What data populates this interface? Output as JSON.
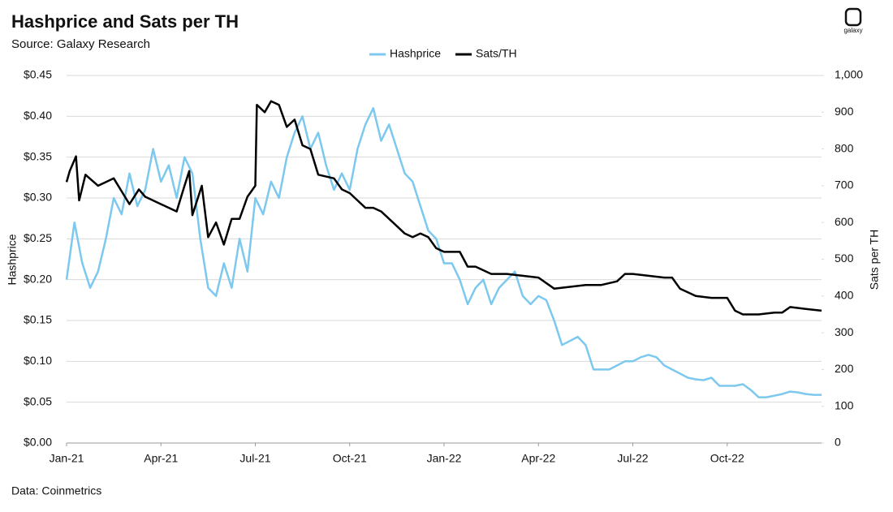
{
  "chart_data": {
    "type": "line",
    "title": "Hashprice and Sats per TH",
    "subtitle": "Source: Galaxy Research",
    "footer": "Data: Coinmetrics",
    "logo": "galaxy",
    "y_label": "Hashprice",
    "y2_label": "Sats per TH",
    "xlim": [
      0,
      24
    ],
    "xticks": [
      {
        "value": 0,
        "label": "Jan-21"
      },
      {
        "value": 3,
        "label": "Apr-21"
      },
      {
        "value": 6,
        "label": "Jul-21"
      },
      {
        "value": 9,
        "label": "Oct-21"
      },
      {
        "value": 12,
        "label": "Jan-22"
      },
      {
        "value": 15,
        "label": "Apr-22"
      },
      {
        "value": 18,
        "label": "Jul-22"
      },
      {
        "value": 21,
        "label": "Oct-22"
      }
    ],
    "ylim": [
      0,
      0.45
    ],
    "yticks": [
      {
        "value": 0,
        "label": "$0.00"
      },
      {
        "value": 0.05,
        "label": "$0.05"
      },
      {
        "value": 0.1,
        "label": "$0.10"
      },
      {
        "value": 0.15,
        "label": "$0.15"
      },
      {
        "value": 0.2,
        "label": "$0.20"
      },
      {
        "value": 0.25,
        "label": "$0.25"
      },
      {
        "value": 0.3,
        "label": "$0.30"
      },
      {
        "value": 0.35,
        "label": "$0.35"
      },
      {
        "value": 0.4,
        "label": "$0.40"
      },
      {
        "value": 0.45,
        "label": "$0.45"
      }
    ],
    "y2lim": [
      0,
      1000
    ],
    "y2ticks": [
      0,
      100,
      200,
      300,
      400,
      500,
      600,
      700,
      800,
      900,
      {
        "value": 1000,
        "label": "1,000"
      }
    ],
    "grid": true,
    "legend": "top",
    "series": [
      {
        "name": "Hashprice",
        "color": "#7cc8ee",
        "axis": "y",
        "x": [
          0,
          0.25,
          0.5,
          0.75,
          1,
          1.25,
          1.5,
          1.75,
          2,
          2.25,
          2.5,
          2.75,
          3,
          3.25,
          3.5,
          3.75,
          4,
          4.25,
          4.5,
          4.75,
          5,
          5.25,
          5.5,
          5.75,
          6,
          6.25,
          6.5,
          6.75,
          7,
          7.25,
          7.5,
          7.75,
          8,
          8.25,
          8.5,
          8.75,
          9,
          9.25,
          9.5,
          9.75,
          10,
          10.25,
          10.5,
          10.75,
          11,
          11.25,
          11.5,
          11.75,
          12,
          12.25,
          12.5,
          12.75,
          13,
          13.25,
          13.5,
          13.75,
          14,
          14.25,
          14.5,
          14.75,
          15,
          15.25,
          15.5,
          15.75,
          16,
          16.25,
          16.5,
          16.75,
          17,
          17.25,
          17.5,
          17.75,
          18,
          18.25,
          18.5,
          18.75,
          19,
          19.25,
          19.5,
          19.75,
          20,
          20.25,
          20.5,
          20.75,
          21,
          21.25,
          21.5,
          21.75,
          22,
          22.25,
          22.5,
          22.75,
          23,
          23.25,
          23.5,
          23.75,
          24
        ],
        "values": [
          0.2,
          0.27,
          0.22,
          0.19,
          0.21,
          0.25,
          0.3,
          0.28,
          0.33,
          0.29,
          0.31,
          0.36,
          0.32,
          0.34,
          0.3,
          0.35,
          0.33,
          0.25,
          0.19,
          0.18,
          0.22,
          0.19,
          0.25,
          0.21,
          0.3,
          0.28,
          0.32,
          0.3,
          0.35,
          0.38,
          0.4,
          0.36,
          0.38,
          0.34,
          0.31,
          0.33,
          0.31,
          0.36,
          0.39,
          0.41,
          0.37,
          0.39,
          0.36,
          0.33,
          0.32,
          0.29,
          0.26,
          0.25,
          0.22,
          0.22,
          0.2,
          0.17,
          0.19,
          0.2,
          0.17,
          0.19,
          0.2,
          0.21,
          0.18,
          0.17,
          0.18,
          0.175,
          0.15,
          0.12,
          0.125,
          0.13,
          0.12,
          0.09,
          0.09,
          0.09,
          0.095,
          0.1,
          0.1,
          0.105,
          0.108,
          0.105,
          0.095,
          0.09,
          0.085,
          0.08,
          0.078,
          0.077,
          0.08,
          0.07,
          0.07,
          0.07,
          0.072,
          0.065,
          0.056,
          0.056,
          0.058,
          0.06,
          0.063,
          0.062,
          0.06,
          0.059,
          0.059
        ]
      },
      {
        "name": "Sats/TH",
        "color": "#000000",
        "axis": "y2",
        "x": [
          0,
          0.1,
          0.3,
          0.4,
          0.6,
          1,
          1.5,
          2,
          2.3,
          2.5,
          3,
          3.5,
          3.75,
          3.9,
          4,
          4.3,
          4.5,
          4.75,
          5,
          5.25,
          5.5,
          5.75,
          6,
          6.05,
          6.3,
          6.5,
          6.75,
          7,
          7.25,
          7.5,
          7.75,
          8,
          8.5,
          8.75,
          9,
          9.25,
          9.5,
          9.75,
          10,
          10.5,
          10.75,
          11,
          11.25,
          11.5,
          11.75,
          12,
          12.5,
          12.75,
          13,
          13.5,
          14,
          14.5,
          15,
          15.5,
          16,
          16.5,
          17,
          17.5,
          17.75,
          18,
          18.5,
          19,
          19.25,
          19.5,
          20,
          20.5,
          21,
          21.25,
          21.5,
          22,
          22.5,
          22.75,
          23,
          23.5,
          24
        ],
        "values": [
          710,
          740,
          780,
          660,
          730,
          700,
          720,
          650,
          690,
          670,
          650,
          630,
          700,
          740,
          620,
          700,
          560,
          600,
          540,
          610,
          610,
          670,
          700,
          920,
          900,
          930,
          920,
          860,
          880,
          810,
          800,
          730,
          720,
          690,
          680,
          660,
          640,
          640,
          630,
          590,
          570,
          560,
          570,
          560,
          530,
          520,
          520,
          480,
          480,
          460,
          460,
          455,
          450,
          420,
          425,
          430,
          430,
          440,
          460,
          460,
          455,
          450,
          450,
          420,
          400,
          395,
          395,
          360,
          350,
          350,
          355,
          355,
          370,
          365,
          360
        ]
      }
    ]
  }
}
